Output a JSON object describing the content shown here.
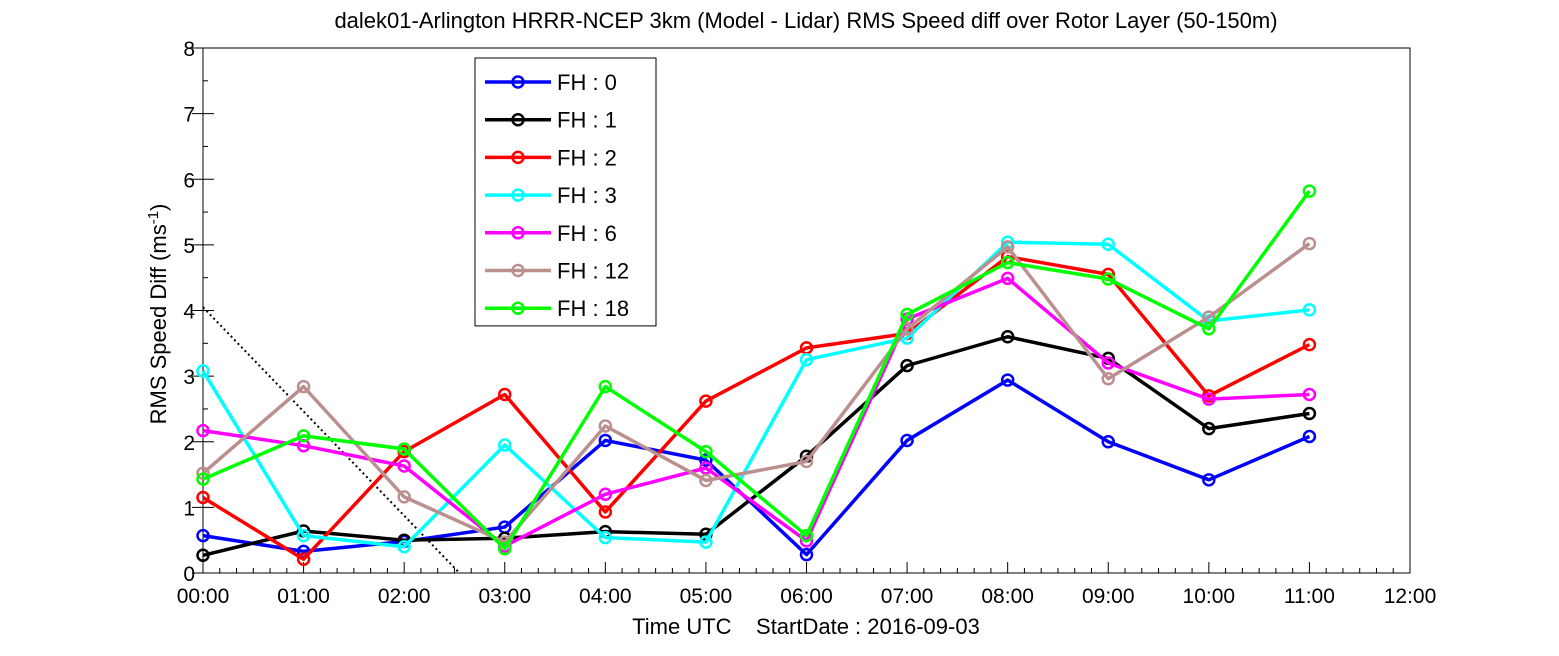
{
  "chart_data": {
    "type": "line",
    "title": "dalek01-Arlington HRRR-NCEP 3km (Model - Lidar) RMS Speed diff over Rotor Layer (50-150m)",
    "xlabel": "Time UTC    StartDate : 2016-09-03",
    "ylabel": {
      "main": "RMS Speed Diff (ms",
      "superscript": "-1",
      "close": ")"
    },
    "x_ticks": [
      "00:00",
      "01:00",
      "02:00",
      "03:00",
      "04:00",
      "05:00",
      "06:00",
      "07:00",
      "08:00",
      "09:00",
      "10:00",
      "11:00",
      "12:00"
    ],
    "y_ticks": [
      "0",
      "1",
      "2",
      "3",
      "4",
      "5",
      "6",
      "7",
      "8"
    ],
    "xlim": [
      0,
      12
    ],
    "ylim": [
      0,
      8
    ],
    "grid": false,
    "legend_position": "top-left",
    "x": [
      0,
      1,
      2,
      3,
      4,
      5,
      6,
      7,
      8,
      9,
      10,
      11
    ],
    "series": [
      {
        "name": "FH : 0",
        "color": "#0000ff",
        "values": [
          0.57,
          0.33,
          0.48,
          0.7,
          2.02,
          1.72,
          0.28,
          2.02,
          2.94,
          2.0,
          1.42,
          2.08
        ]
      },
      {
        "name": "FH : 1",
        "color": "#000000",
        "values": [
          0.27,
          0.64,
          0.5,
          0.53,
          0.63,
          0.59,
          1.78,
          3.16,
          3.6,
          3.27,
          2.2,
          2.43
        ]
      },
      {
        "name": "FH : 2",
        "color": "#ff0000",
        "values": [
          1.15,
          0.21,
          1.85,
          2.72,
          0.93,
          2.62,
          3.43,
          3.65,
          4.82,
          4.55,
          2.7,
          3.48
        ]
      },
      {
        "name": "FH : 3",
        "color": "#00ffff",
        "values": [
          3.08,
          0.57,
          0.4,
          1.95,
          0.54,
          0.47,
          3.25,
          3.58,
          5.04,
          5.01,
          3.84,
          4.01
        ]
      },
      {
        "name": "FH : 6",
        "color": "#ff00ff",
        "values": [
          2.17,
          1.94,
          1.63,
          0.41,
          1.2,
          1.6,
          0.49,
          3.87,
          4.49,
          3.2,
          2.65,
          2.72
        ]
      },
      {
        "name": "FH : 12",
        "color": "#bc8f8f",
        "values": [
          1.52,
          2.84,
          1.16,
          0.47,
          2.24,
          1.41,
          1.7,
          3.72,
          4.97,
          2.96,
          3.9,
          5.02
        ]
      },
      {
        "name": "FH : 18",
        "color": "#00ff00",
        "values": [
          1.43,
          2.09,
          1.89,
          0.37,
          2.84,
          1.85,
          0.57,
          3.94,
          4.73,
          4.48,
          3.72,
          5.82
        ]
      }
    ],
    "reference_line": {
      "style": "dotted",
      "color": "#000000",
      "x": [
        0,
        2.55
      ],
      "values": [
        4.05,
        0
      ]
    }
  }
}
